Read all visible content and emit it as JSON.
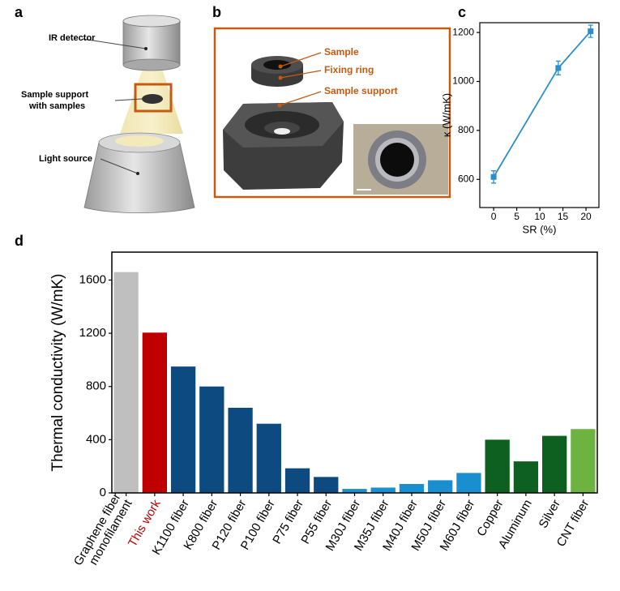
{
  "panel_labels": [
    "a",
    "b",
    "c",
    "d"
  ],
  "diagram_a": {
    "detector": "IR detector",
    "support": [
      "Sample support",
      "with samples"
    ],
    "source": "Light source"
  },
  "diagram_b": {
    "sample": "Sample",
    "ring": "Fixing ring",
    "support": "Sample support"
  },
  "chart_data": [
    {
      "type": "line",
      "x_label": "SR (%)",
      "y_label": "κ (W/mK)",
      "x": [
        0,
        14,
        21
      ],
      "values": [
        610,
        1055,
        1205
      ],
      "errors": [
        25,
        28,
        25
      ],
      "color": "#2a8fcc",
      "xlim": [
        -3,
        22.8
      ],
      "xticks": [
        0,
        5,
        10,
        15,
        20
      ],
      "ylim": [
        485,
        1240
      ],
      "yticks": [
        600,
        800,
        1000,
        1200
      ]
    },
    {
      "type": "bar",
      "y_label": "Thermal conductivity (W/mK)",
      "categories": [
        [
          "Graphene fiber",
          "monofilament"
        ],
        "This work",
        "K1100 fiber",
        "K800 fiber",
        "P120 fiber",
        "P100 fiber",
        "P75 fiber",
        "P55 fiber",
        "M30J fiber",
        "M35J fiber",
        "M40J fiber",
        "M50J fiber",
        "M60J fiber",
        "Copper",
        "Aluminum",
        "Silver",
        "CNT fiber"
      ],
      "values": [
        1660,
        1205,
        950,
        800,
        640,
        520,
        185,
        120,
        30,
        40,
        67,
        95,
        150,
        400,
        237,
        429,
        480
      ],
      "colors": [
        "#bfbfbf",
        "#c00000",
        "#0d4a7f",
        "#0d4a7f",
        "#0d4a7f",
        "#0d4a7f",
        "#0d4a7f",
        "#0d4a7f",
        "#1a8fd0",
        "#1a8fd0",
        "#1a8fd0",
        "#1a8fd0",
        "#1a8fd0",
        "#0e6020",
        "#0e6020",
        "#0e6020",
        "#6db33f"
      ],
      "highlight_index": 1,
      "highlight_color": "#c00000",
      "ylim": [
        0,
        1810
      ],
      "yticks": [
        0,
        400,
        800,
        1200,
        1600
      ]
    }
  ]
}
